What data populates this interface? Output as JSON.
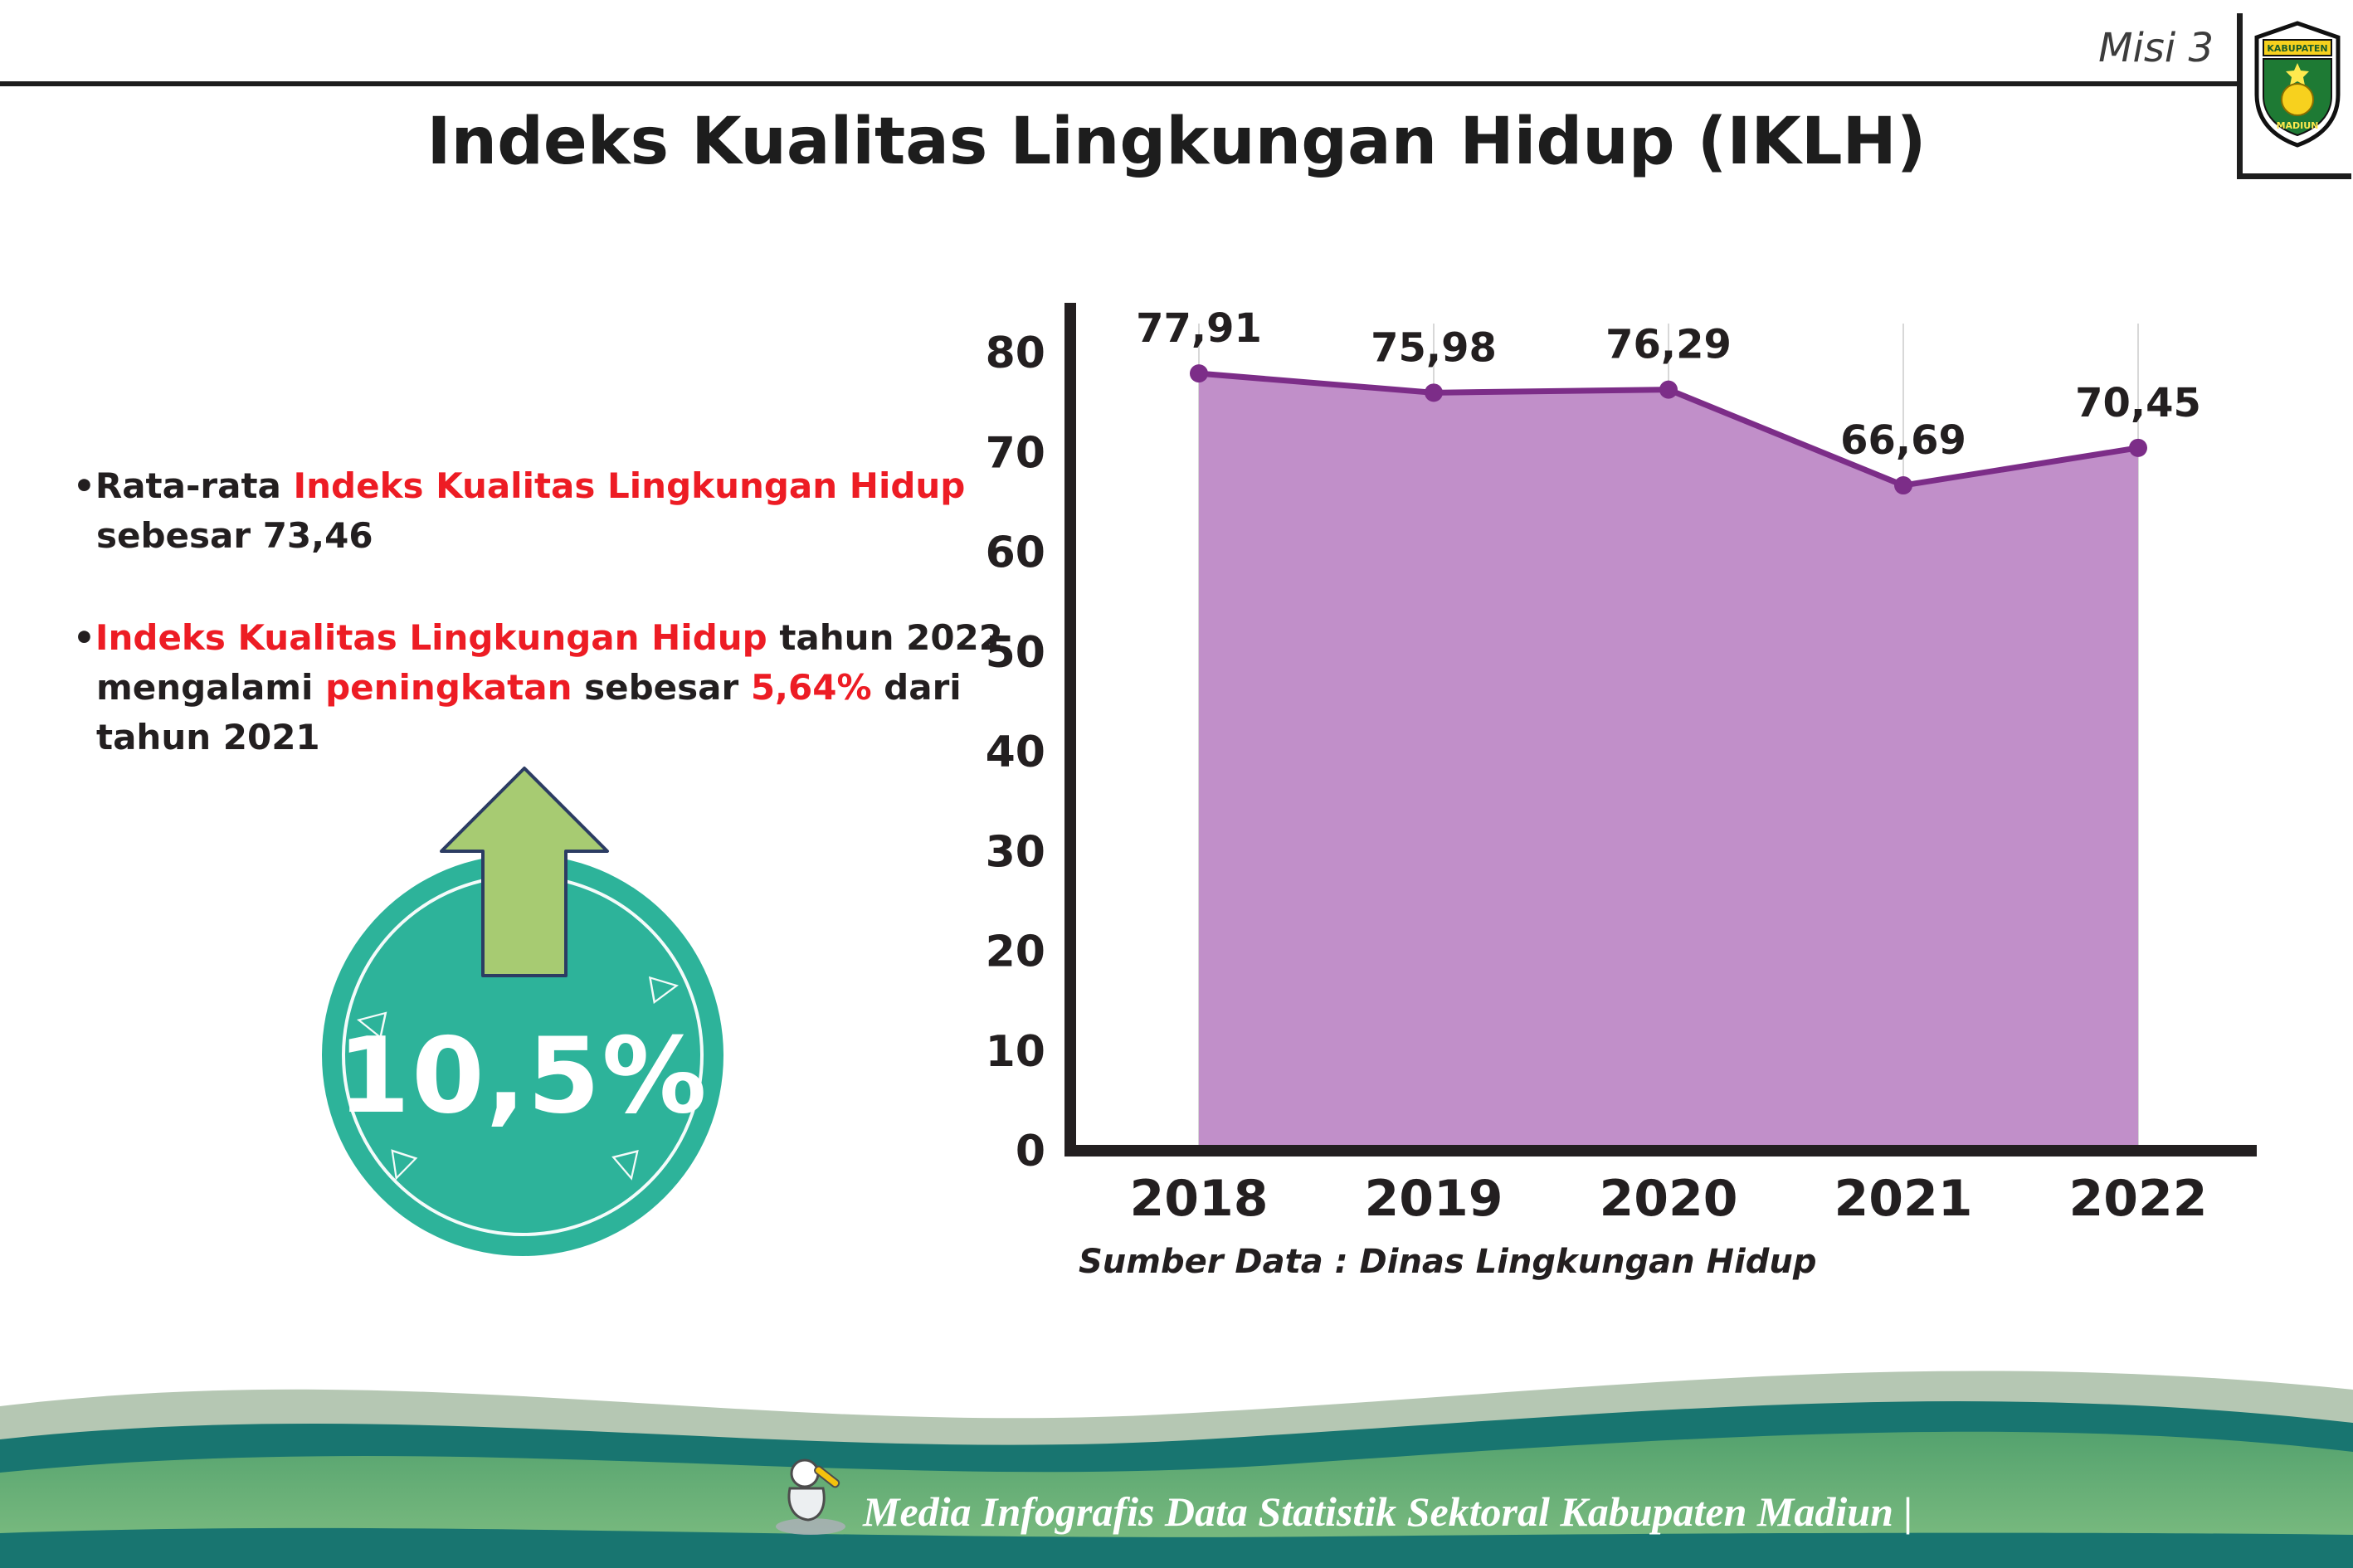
{
  "header": {
    "misi_label": "Misi 3",
    "title": "Indeks Kualitas Lingkungan Hidup (IKLH)",
    "logo": {
      "name": "Kabupaten Madiun",
      "text_top": "KABUPATEN",
      "text_bottom": "MADIUN"
    }
  },
  "bullets": [
    {
      "marker": "•",
      "segments": [
        {
          "text": "Rata-rata ",
          "color": "#231f20"
        },
        {
          "text": "Indeks Kualitas Lingkungan Hidup",
          "color": "#ed1c24"
        },
        {
          "text": " sebesar 73,46",
          "color": "#231f20"
        }
      ]
    },
    {
      "marker": "•",
      "segments": [
        {
          "text": "Indeks Kualitas Lingkungan Hidup",
          "color": "#ed1c24"
        },
        {
          "text": " tahun 2022 mengalami ",
          "color": "#231f20"
        },
        {
          "text": "peningkatan",
          "color": "#ed1c24"
        },
        {
          "text": " sebesar ",
          "color": "#231f20"
        },
        {
          "text": "5,64%",
          "color": "#ed1c24"
        },
        {
          "text": " dari tahun 2021",
          "color": "#231f20"
        }
      ]
    }
  ],
  "highlight": {
    "value": "10,5%",
    "circle_color": "#2db39a",
    "arrow_color": "#a7cb72",
    "arrow_outline": "#2c3c63",
    "decor_triangles": [
      "◁",
      "▷",
      "▽",
      "▽"
    ]
  },
  "chart_data": {
    "type": "area",
    "categories": [
      "2018",
      "2019",
      "2020",
      "2021",
      "2022"
    ],
    "values": [
      77.91,
      75.98,
      76.29,
      66.69,
      70.45
    ],
    "point_labels": [
      "77,91",
      "75,98",
      "76,29",
      "66,69",
      "70,45"
    ],
    "title": "",
    "xlabel": "",
    "ylabel": "",
    "ylim": [
      0,
      80
    ],
    "ytick_step": 10,
    "yticks": [
      "0",
      "10",
      "20",
      "30",
      "40",
      "50",
      "60",
      "70",
      "80"
    ],
    "grid": "vertical-light",
    "legend": "none",
    "fill_color": "#c18fc9",
    "line_color": "#7c2d88",
    "axis_color": "#231f20",
    "grid_color": "#d8d8d8"
  },
  "source_note": "Sumber Data : Dinas Lingkungan Hidup",
  "footer": {
    "text": "Media Infografis Data Statistik Sektoral Kabupaten Madiun |",
    "band_colors": {
      "sage": "#b5c7b3",
      "teal": "#187570",
      "green_top": "#54a26e",
      "green_bottom": "#82c083",
      "bottom_strip": "#187570"
    }
  }
}
